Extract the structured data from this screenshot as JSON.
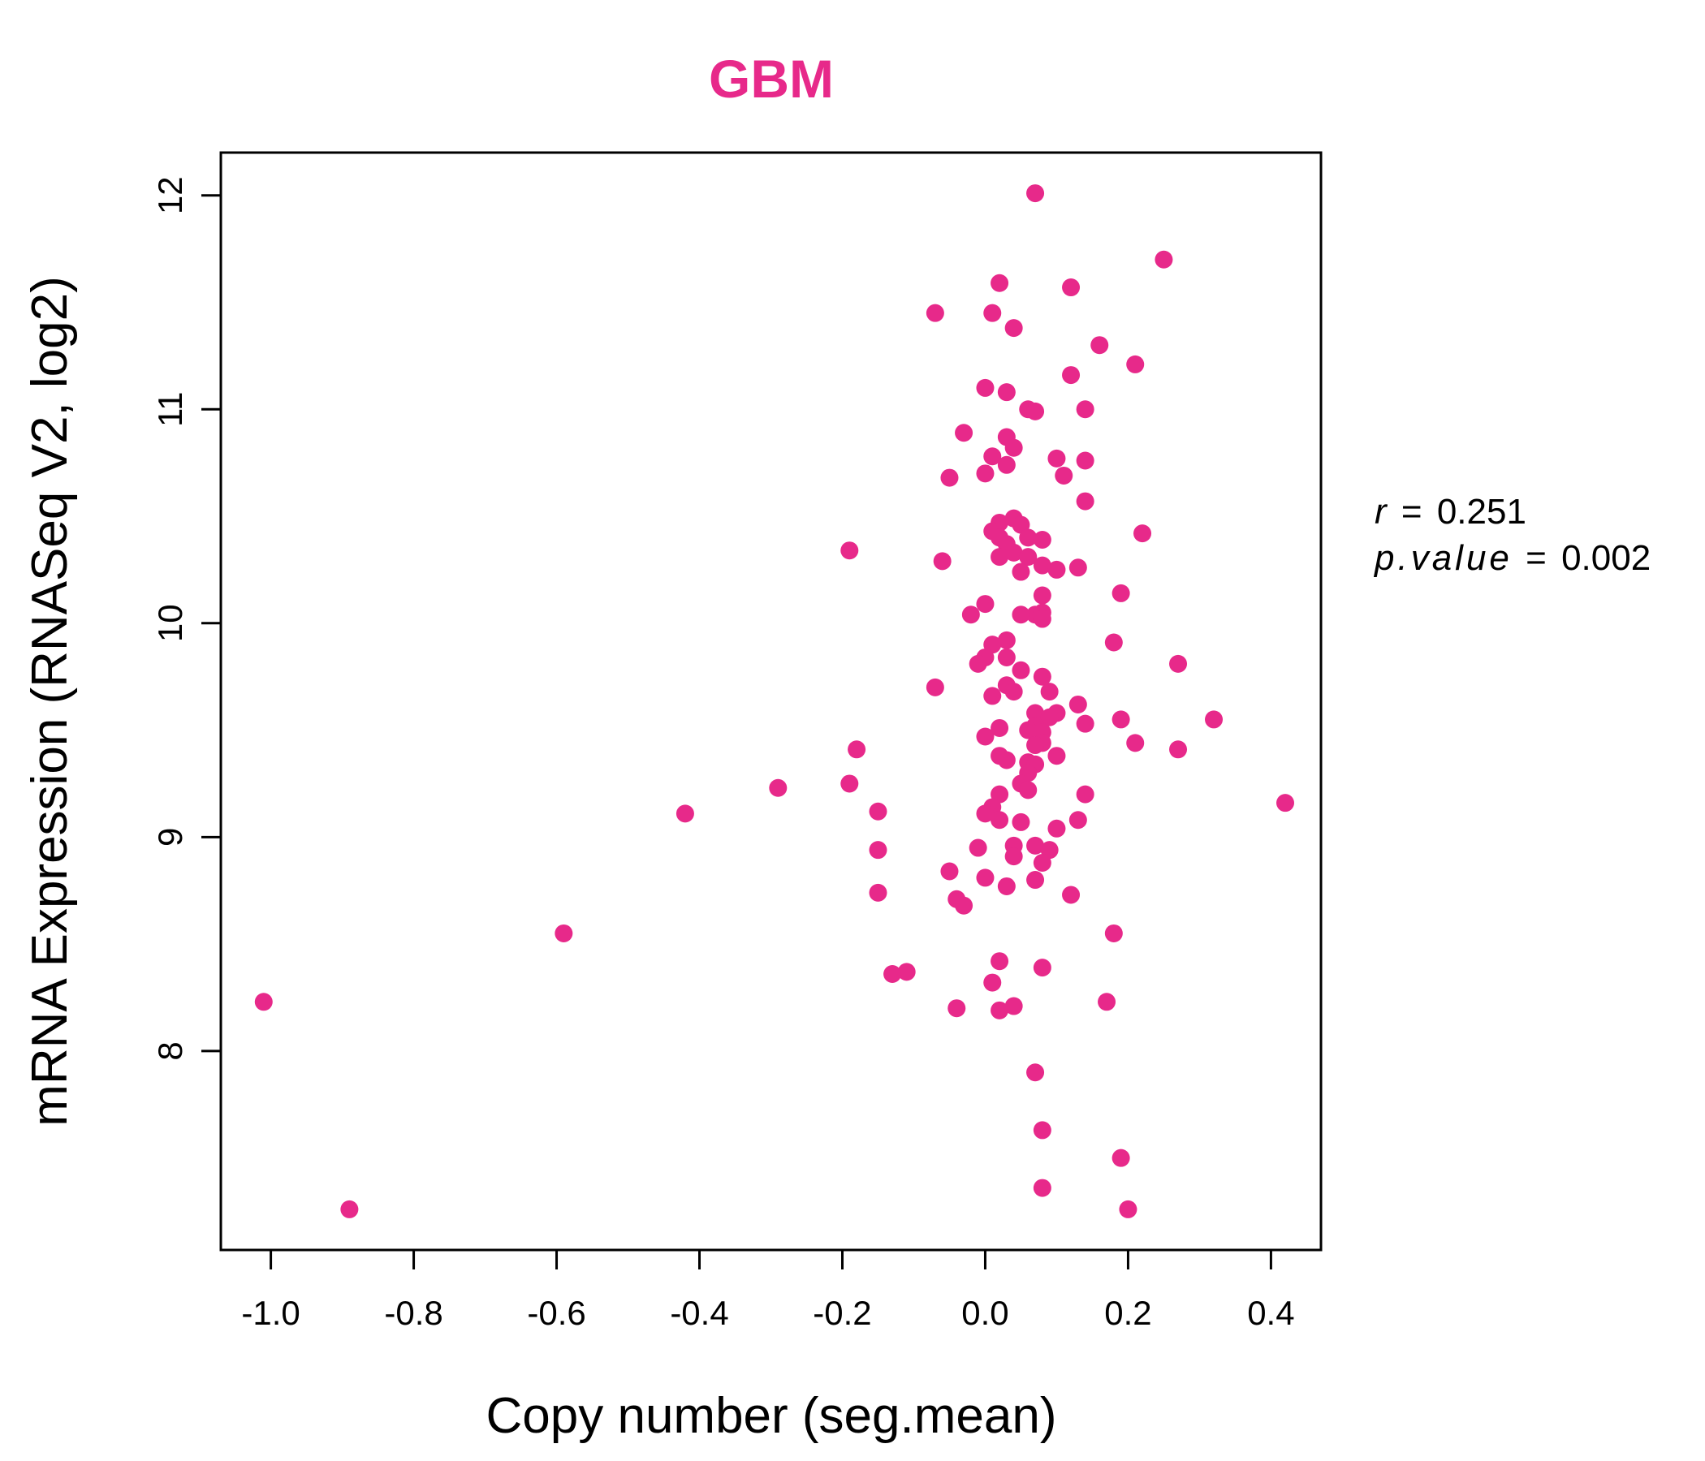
{
  "chart_data": {
    "type": "scatter",
    "title": "GBM",
    "xlabel": "Copy number (seg.mean)",
    "ylabel": "mRNA Expression (RNASeq V2, log2)",
    "xlim": [
      -1.07,
      0.47
    ],
    "ylim": [
      7.07,
      12.2
    ],
    "x_ticks": [
      -1.0,
      -0.8,
      -0.6,
      -0.4,
      -0.2,
      0.0,
      0.2,
      0.4
    ],
    "x_tick_labels": [
      "-1.0",
      "-0.8",
      "-0.6",
      "-0.4",
      "-0.2",
      "0.0",
      "0.2",
      "0.4"
    ],
    "y_ticks": [
      8,
      9,
      10,
      11,
      12
    ],
    "y_tick_labels": [
      "8",
      "9",
      "10",
      "11",
      "12"
    ],
    "grid": false,
    "point_color": "#e7298a",
    "stats": {
      "r_label": "r",
      "r_value": "0.251",
      "p_label": "p.value",
      "p_value": "0.002",
      "equals": "="
    },
    "points": [
      {
        "x": 0.07,
        "y": 12.01
      },
      {
        "x": 0.25,
        "y": 11.7
      },
      {
        "x": 0.02,
        "y": 11.59
      },
      {
        "x": 0.12,
        "y": 11.57
      },
      {
        "x": -0.07,
        "y": 11.45
      },
      {
        "x": 0.01,
        "y": 11.45
      },
      {
        "x": 0.04,
        "y": 11.38
      },
      {
        "x": 0.16,
        "y": 11.3
      },
      {
        "x": 0.21,
        "y": 11.21
      },
      {
        "x": 0.12,
        "y": 11.16
      },
      {
        "x": 0.0,
        "y": 11.1
      },
      {
        "x": 0.03,
        "y": 11.08
      },
      {
        "x": 0.06,
        "y": 11.0
      },
      {
        "x": 0.07,
        "y": 10.99
      },
      {
        "x": 0.14,
        "y": 11.0
      },
      {
        "x": -0.03,
        "y": 10.89
      },
      {
        "x": 0.03,
        "y": 10.87
      },
      {
        "x": 0.04,
        "y": 10.82
      },
      {
        "x": 0.01,
        "y": 10.78
      },
      {
        "x": 0.1,
        "y": 10.77
      },
      {
        "x": 0.14,
        "y": 10.76
      },
      {
        "x": 0.03,
        "y": 10.74
      },
      {
        "x": 0.0,
        "y": 10.7
      },
      {
        "x": -0.05,
        "y": 10.68
      },
      {
        "x": 0.11,
        "y": 10.69
      },
      {
        "x": 0.14,
        "y": 10.57
      },
      {
        "x": 0.04,
        "y": 10.49
      },
      {
        "x": 0.05,
        "y": 10.46
      },
      {
        "x": 0.02,
        "y": 10.47
      },
      {
        "x": 0.22,
        "y": 10.42
      },
      {
        "x": 0.01,
        "y": 10.43
      },
      {
        "x": 0.02,
        "y": 10.4
      },
      {
        "x": 0.06,
        "y": 10.4
      },
      {
        "x": 0.08,
        "y": 10.39
      },
      {
        "x": 0.03,
        "y": 10.37
      },
      {
        "x": -0.19,
        "y": 10.34
      },
      {
        "x": 0.04,
        "y": 10.33
      },
      {
        "x": 0.02,
        "y": 10.31
      },
      {
        "x": 0.06,
        "y": 10.31
      },
      {
        "x": -0.06,
        "y": 10.29
      },
      {
        "x": 0.08,
        "y": 10.27
      },
      {
        "x": 0.1,
        "y": 10.25
      },
      {
        "x": 0.13,
        "y": 10.26
      },
      {
        "x": 0.05,
        "y": 10.24
      },
      {
        "x": 0.19,
        "y": 10.14
      },
      {
        "x": 0.08,
        "y": 10.13
      },
      {
        "x": 0.0,
        "y": 10.09
      },
      {
        "x": 0.07,
        "y": 10.04
      },
      {
        "x": 0.08,
        "y": 10.05
      },
      {
        "x": -0.02,
        "y": 10.04
      },
      {
        "x": 0.05,
        "y": 10.04
      },
      {
        "x": 0.08,
        "y": 10.02
      },
      {
        "x": 0.18,
        "y": 9.91
      },
      {
        "x": 0.03,
        "y": 9.92
      },
      {
        "x": 0.01,
        "y": 9.9
      },
      {
        "x": 0.27,
        "y": 9.81
      },
      {
        "x": 0.0,
        "y": 9.84
      },
      {
        "x": 0.03,
        "y": 9.84
      },
      {
        "x": -0.01,
        "y": 9.81
      },
      {
        "x": 0.05,
        "y": 9.78
      },
      {
        "x": 0.08,
        "y": 9.75
      },
      {
        "x": 0.03,
        "y": 9.71
      },
      {
        "x": -0.07,
        "y": 9.7
      },
      {
        "x": 0.04,
        "y": 9.68
      },
      {
        "x": 0.09,
        "y": 9.68
      },
      {
        "x": 0.01,
        "y": 9.66
      },
      {
        "x": 0.13,
        "y": 9.62
      },
      {
        "x": 0.07,
        "y": 9.58
      },
      {
        "x": 0.1,
        "y": 9.58
      },
      {
        "x": 0.09,
        "y": 9.56
      },
      {
        "x": 0.19,
        "y": 9.55
      },
      {
        "x": 0.32,
        "y": 9.55
      },
      {
        "x": 0.14,
        "y": 9.53
      },
      {
        "x": 0.07,
        "y": 9.52
      },
      {
        "x": 0.02,
        "y": 9.51
      },
      {
        "x": 0.06,
        "y": 9.5
      },
      {
        "x": 0.08,
        "y": 9.49
      },
      {
        "x": 0.0,
        "y": 9.47
      },
      {
        "x": 0.08,
        "y": 9.44
      },
      {
        "x": 0.07,
        "y": 9.43
      },
      {
        "x": 0.21,
        "y": 9.44
      },
      {
        "x": 0.27,
        "y": 9.41
      },
      {
        "x": -0.18,
        "y": 9.41
      },
      {
        "x": 0.02,
        "y": 9.38
      },
      {
        "x": 0.1,
        "y": 9.38
      },
      {
        "x": 0.03,
        "y": 9.36
      },
      {
        "x": 0.06,
        "y": 9.35
      },
      {
        "x": 0.07,
        "y": 9.34
      },
      {
        "x": 0.06,
        "y": 9.3
      },
      {
        "x": -0.19,
        "y": 9.25
      },
      {
        "x": 0.05,
        "y": 9.25
      },
      {
        "x": -0.29,
        "y": 9.23
      },
      {
        "x": 0.06,
        "y": 9.22
      },
      {
        "x": 0.02,
        "y": 9.2
      },
      {
        "x": 0.14,
        "y": 9.2
      },
      {
        "x": 0.42,
        "y": 9.16
      },
      {
        "x": 0.01,
        "y": 9.14
      },
      {
        "x": -0.15,
        "y": 9.12
      },
      {
        "x": 0.0,
        "y": 9.11
      },
      {
        "x": -0.42,
        "y": 9.11
      },
      {
        "x": 0.02,
        "y": 9.08
      },
      {
        "x": 0.05,
        "y": 9.07
      },
      {
        "x": 0.13,
        "y": 9.08
      },
      {
        "x": 0.1,
        "y": 9.04
      },
      {
        "x": 0.04,
        "y": 8.96
      },
      {
        "x": 0.07,
        "y": 8.96
      },
      {
        "x": -0.01,
        "y": 8.95
      },
      {
        "x": -0.15,
        "y": 8.94
      },
      {
        "x": 0.09,
        "y": 8.94
      },
      {
        "x": 0.04,
        "y": 8.91
      },
      {
        "x": 0.08,
        "y": 8.88
      },
      {
        "x": -0.05,
        "y": 8.84
      },
      {
        "x": 0.0,
        "y": 8.81
      },
      {
        "x": 0.07,
        "y": 8.8
      },
      {
        "x": 0.03,
        "y": 8.77
      },
      {
        "x": -0.15,
        "y": 8.74
      },
      {
        "x": 0.12,
        "y": 8.73
      },
      {
        "x": -0.04,
        "y": 8.71
      },
      {
        "x": -0.03,
        "y": 8.68
      },
      {
        "x": -0.59,
        "y": 8.55
      },
      {
        "x": 0.18,
        "y": 8.55
      },
      {
        "x": 0.02,
        "y": 8.42
      },
      {
        "x": 0.08,
        "y": 8.39
      },
      {
        "x": -0.11,
        "y": 8.37
      },
      {
        "x": -0.13,
        "y": 8.36
      },
      {
        "x": 0.01,
        "y": 8.32
      },
      {
        "x": -1.01,
        "y": 8.23
      },
      {
        "x": 0.17,
        "y": 8.23
      },
      {
        "x": 0.04,
        "y": 8.21
      },
      {
        "x": -0.04,
        "y": 8.2
      },
      {
        "x": 0.02,
        "y": 8.19
      },
      {
        "x": 0.07,
        "y": 7.9
      },
      {
        "x": 0.08,
        "y": 7.63
      },
      {
        "x": 0.19,
        "y": 7.5
      },
      {
        "x": 0.08,
        "y": 7.36
      },
      {
        "x": -0.89,
        "y": 7.26
      },
      {
        "x": 0.2,
        "y": 7.26
      }
    ]
  }
}
